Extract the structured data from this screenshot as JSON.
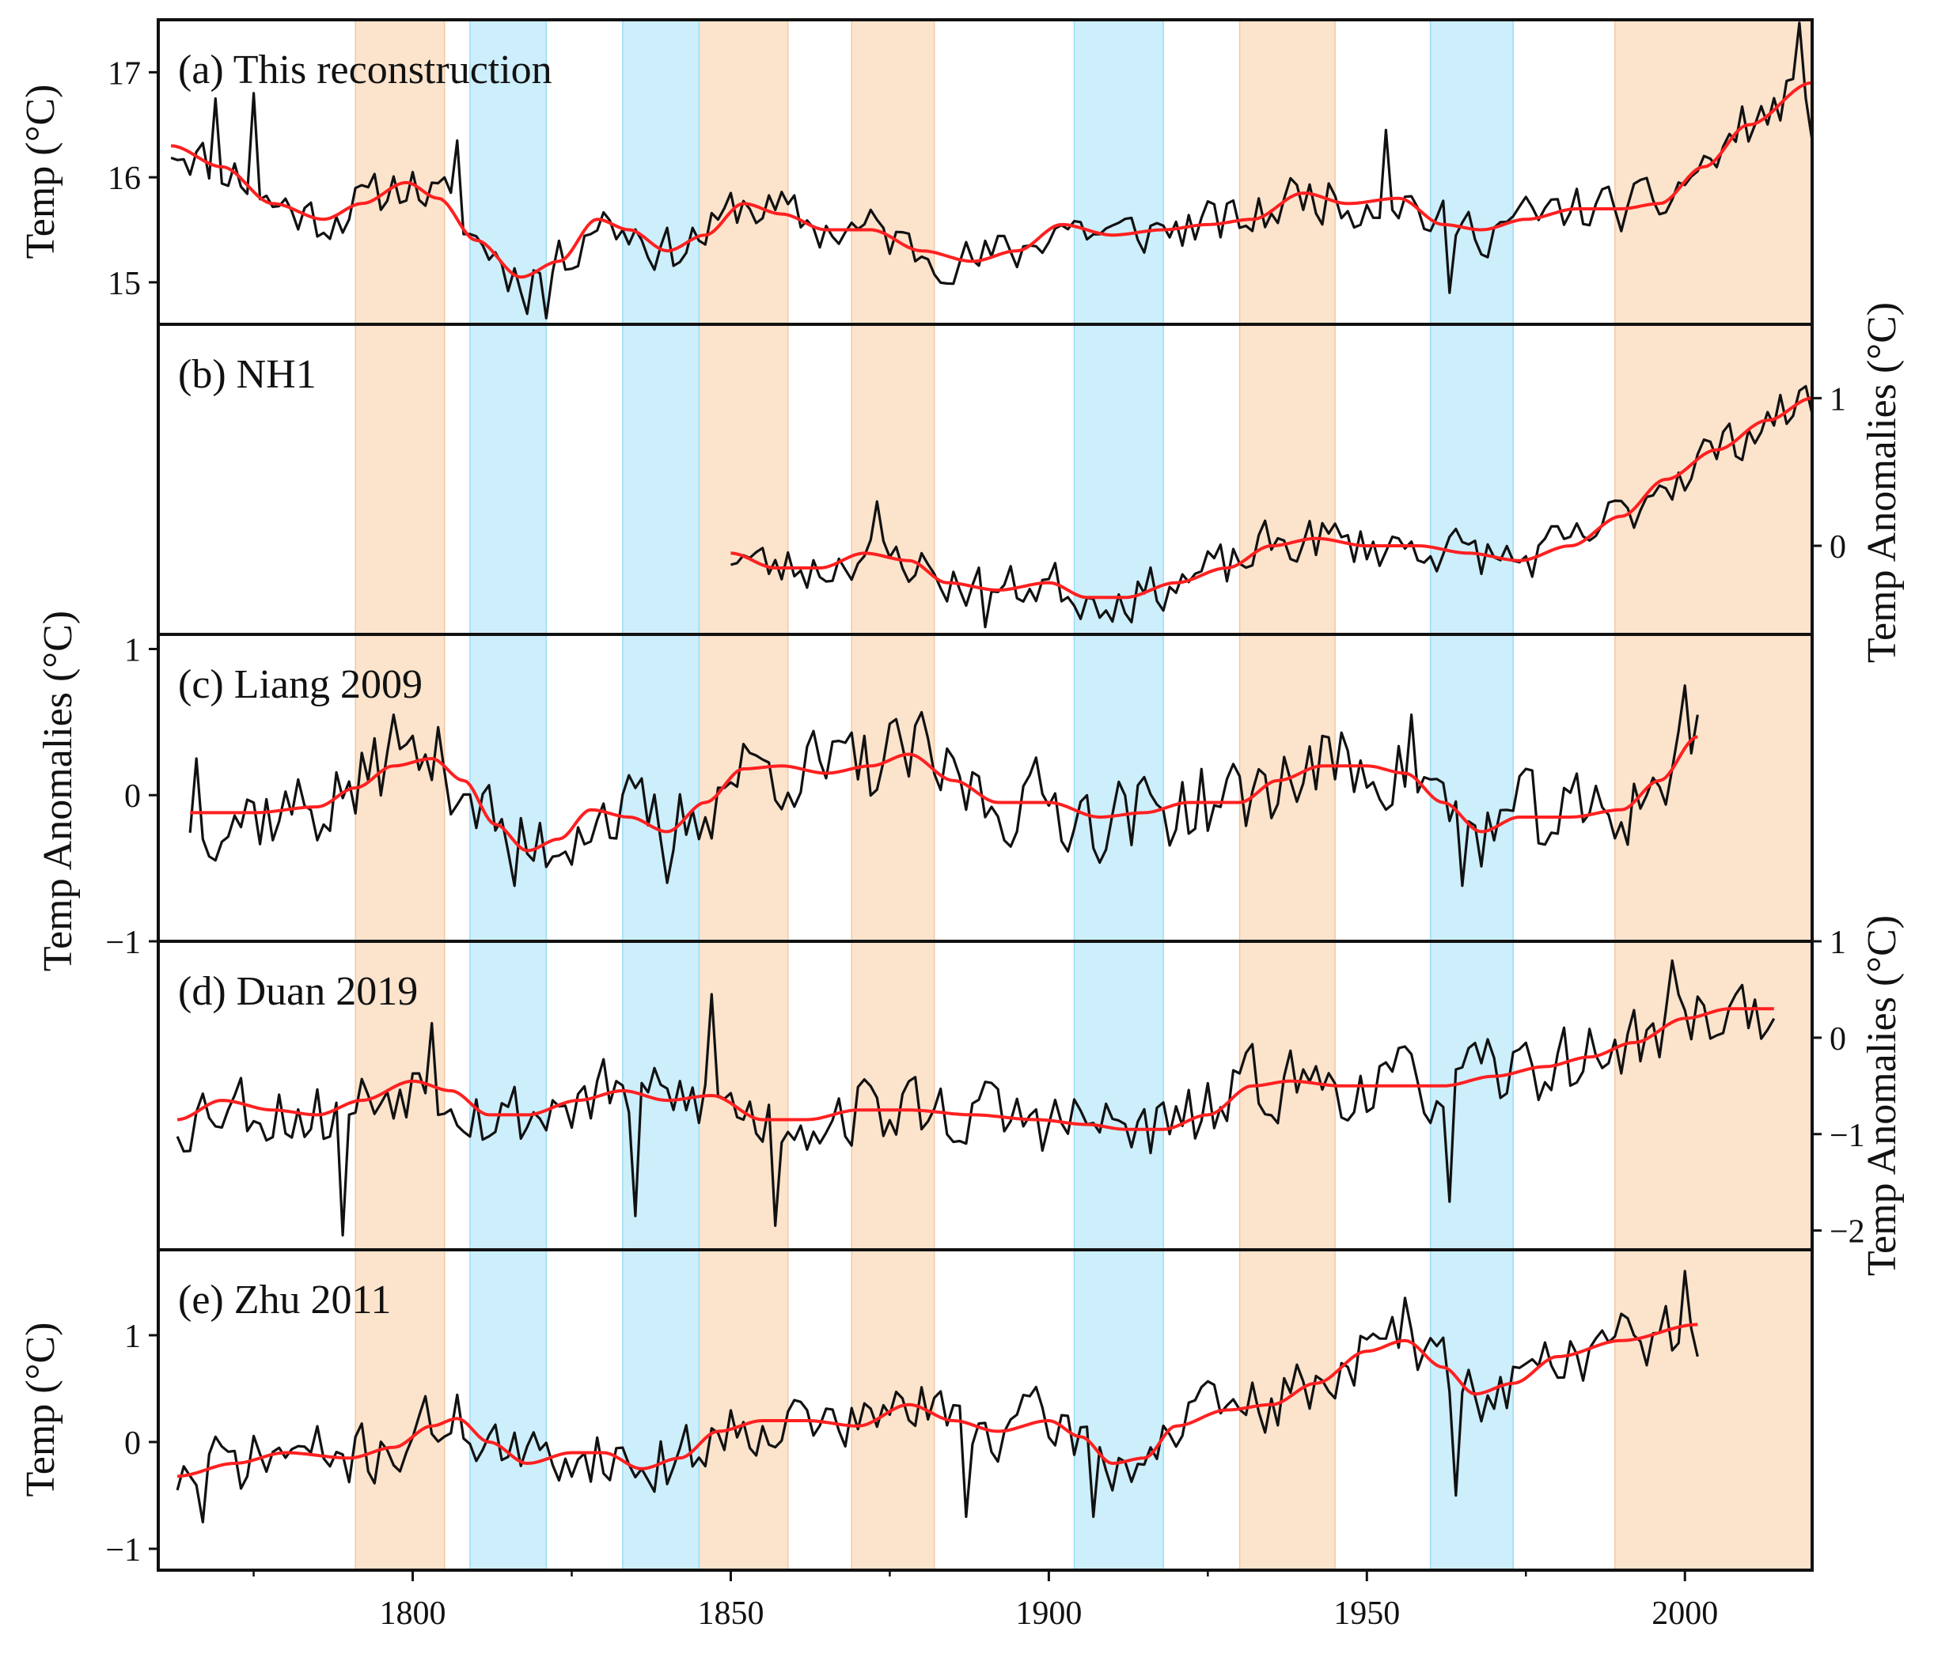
{
  "chart_data": {
    "type": "line",
    "x_axis": {
      "xlim": [
        1760,
        2020
      ],
      "ticks": [
        1800,
        1850,
        1900,
        1950,
        2000
      ],
      "tick_labels": [
        "1800",
        "1850",
        "1900",
        "1950",
        "2000"
      ]
    },
    "shaded_intervals": {
      "warm_color": "#fbe3cc",
      "cold_color": "#cdeefb",
      "warm": [
        [
          1791,
          1805
        ],
        [
          1845,
          1859
        ],
        [
          1869,
          1882
        ],
        [
          1930,
          1945
        ],
        [
          1989,
          2020
        ]
      ],
      "cold": [
        [
          1809,
          1821
        ],
        [
          1833,
          1845
        ],
        [
          1904,
          1918
        ],
        [
          1960,
          1973
        ]
      ]
    },
    "series_colors": {
      "raw": "#111111",
      "smooth": "#ff2020"
    },
    "panels": [
      {
        "id": "a",
        "title": "(a) This reconstruction",
        "y_side": "left",
        "ylabel": "Temp (°C)",
        "ylim": [
          14.6,
          17.5
        ],
        "yticks": [
          15,
          16,
          17
        ],
        "ytick_labels": [
          "15",
          "16",
          "17"
        ],
        "x_range": [
          1762,
          2020
        ],
        "smooth": [
          [
            1762,
            16.3
          ],
          [
            1770,
            16.1
          ],
          [
            1778,
            15.75
          ],
          [
            1786,
            15.6
          ],
          [
            1792,
            15.75
          ],
          [
            1799,
            15.95
          ],
          [
            1804,
            15.8
          ],
          [
            1810,
            15.4
          ],
          [
            1817,
            15.05
          ],
          [
            1823,
            15.2
          ],
          [
            1829,
            15.6
          ],
          [
            1834,
            15.5
          ],
          [
            1840,
            15.3
          ],
          [
            1846,
            15.45
          ],
          [
            1852,
            15.75
          ],
          [
            1858,
            15.65
          ],
          [
            1865,
            15.5
          ],
          [
            1872,
            15.5
          ],
          [
            1880,
            15.3
          ],
          [
            1888,
            15.2
          ],
          [
            1895,
            15.3
          ],
          [
            1902,
            15.55
          ],
          [
            1910,
            15.45
          ],
          [
            1918,
            15.5
          ],
          [
            1925,
            15.55
          ],
          [
            1932,
            15.6
          ],
          [
            1940,
            15.85
          ],
          [
            1947,
            15.75
          ],
          [
            1955,
            15.8
          ],
          [
            1962,
            15.55
          ],
          [
            1968,
            15.5
          ],
          [
            1975,
            15.6
          ],
          [
            1983,
            15.7
          ],
          [
            1990,
            15.7
          ],
          [
            1996,
            15.75
          ],
          [
            2003,
            16.1
          ],
          [
            2010,
            16.5
          ],
          [
            2020,
            16.9
          ]
        ],
        "raw": {
          "seed": 11,
          "amp": 0.4,
          "overrides": [
            [
              1769,
              16.75
            ],
            [
              1775,
              16.8
            ],
            [
              1807,
              16.35
            ],
            [
              1818,
              14.7
            ],
            [
              1821,
              14.65
            ],
            [
              1953,
              16.45
            ],
            [
              1963,
              14.9
            ],
            [
              2018,
              17.5
            ],
            [
              2020,
              16.35
            ]
          ]
        }
      },
      {
        "id": "b",
        "title": "(b) NH1",
        "y_side": "right",
        "ylim": [
          -0.6,
          1.5
        ],
        "yticks": [
          0,
          1
        ],
        "ytick_labels": [
          "0",
          "1"
        ],
        "x_range": [
          1850,
          2020
        ],
        "smooth": [
          [
            1850,
            -0.05
          ],
          [
            1857,
            -0.15
          ],
          [
            1864,
            -0.15
          ],
          [
            1871,
            -0.05
          ],
          [
            1878,
            -0.1
          ],
          [
            1884,
            -0.25
          ],
          [
            1892,
            -0.3
          ],
          [
            1900,
            -0.25
          ],
          [
            1906,
            -0.35
          ],
          [
            1912,
            -0.35
          ],
          [
            1920,
            -0.25
          ],
          [
            1928,
            -0.15
          ],
          [
            1935,
            0.0
          ],
          [
            1942,
            0.05
          ],
          [
            1950,
            0.0
          ],
          [
            1958,
            0.0
          ],
          [
            1966,
            -0.05
          ],
          [
            1974,
            -0.1
          ],
          [
            1982,
            0.0
          ],
          [
            1990,
            0.2
          ],
          [
            1997,
            0.45
          ],
          [
            2005,
            0.65
          ],
          [
            2013,
            0.85
          ],
          [
            2020,
            1.0
          ]
        ],
        "raw": {
          "seed": 23,
          "amp": 0.28,
          "overrides": [
            [
              1873,
              0.3
            ],
            [
              1890,
              -0.55
            ],
            [
              1955,
              0.05
            ],
            [
              2018,
              1.05
            ]
          ]
        }
      },
      {
        "id": "c",
        "title": "(c) Liang 2009",
        "y_side": "left",
        "ylabel": "Temp Anomalies (°C)",
        "ylim": [
          -1.0,
          1.1
        ],
        "yticks": [
          -1,
          0,
          1
        ],
        "ytick_labels": [
          "−1",
          "0",
          "1"
        ],
        "x_range": [
          1765,
          2002
        ],
        "smooth": [
          [
            1765,
            -0.12
          ],
          [
            1775,
            -0.12
          ],
          [
            1785,
            -0.08
          ],
          [
            1791,
            0.05
          ],
          [
            1797,
            0.2
          ],
          [
            1803,
            0.25
          ],
          [
            1808,
            0.1
          ],
          [
            1813,
            -0.2
          ],
          [
            1818,
            -0.38
          ],
          [
            1823,
            -0.3
          ],
          [
            1828,
            -0.1
          ],
          [
            1834,
            -0.15
          ],
          [
            1840,
            -0.25
          ],
          [
            1846,
            -0.05
          ],
          [
            1852,
            0.18
          ],
          [
            1858,
            0.2
          ],
          [
            1865,
            0.15
          ],
          [
            1872,
            0.2
          ],
          [
            1878,
            0.28
          ],
          [
            1885,
            0.1
          ],
          [
            1892,
            -0.05
          ],
          [
            1900,
            -0.05
          ],
          [
            1908,
            -0.15
          ],
          [
            1915,
            -0.12
          ],
          [
            1922,
            -0.05
          ],
          [
            1930,
            -0.05
          ],
          [
            1936,
            0.1
          ],
          [
            1943,
            0.2
          ],
          [
            1950,
            0.2
          ],
          [
            1956,
            0.15
          ],
          [
            1962,
            -0.05
          ],
          [
            1968,
            -0.25
          ],
          [
            1974,
            -0.15
          ],
          [
            1982,
            -0.15
          ],
          [
            1990,
            -0.1
          ],
          [
            1996,
            0.1
          ],
          [
            2002,
            0.4
          ]
        ],
        "raw": {
          "seed": 37,
          "amp": 0.5,
          "overrides": [
            [
              1766,
              0.25
            ],
            [
              1797,
              0.55
            ],
            [
              1816,
              -0.62
            ],
            [
              1840,
              -0.6
            ],
            [
              1957,
              0.55
            ],
            [
              1965,
              -0.62
            ],
            [
              2000,
              0.75
            ],
            [
              2002,
              0.55
            ]
          ]
        }
      },
      {
        "id": "d",
        "title": "(d) Duan 2019",
        "y_side": "right",
        "ylabel": "Temp Anomalies (°C)",
        "ylim": [
          -2.2,
          1.0
        ],
        "yticks": [
          -2,
          -1,
          0,
          1
        ],
        "ytick_labels": [
          "−2",
          "−1",
          "0",
          "1"
        ],
        "x_range": [
          1763,
          2014
        ],
        "smooth": [
          [
            1763,
            -0.85
          ],
          [
            1770,
            -0.65
          ],
          [
            1778,
            -0.75
          ],
          [
            1785,
            -0.8
          ],
          [
            1792,
            -0.65
          ],
          [
            1800,
            -0.45
          ],
          [
            1806,
            -0.55
          ],
          [
            1812,
            -0.8
          ],
          [
            1818,
            -0.8
          ],
          [
            1826,
            -0.65
          ],
          [
            1833,
            -0.55
          ],
          [
            1840,
            -0.65
          ],
          [
            1847,
            -0.6
          ],
          [
            1855,
            -0.85
          ],
          [
            1862,
            -0.85
          ],
          [
            1870,
            -0.75
          ],
          [
            1878,
            -0.75
          ],
          [
            1888,
            -0.8
          ],
          [
            1898,
            -0.85
          ],
          [
            1906,
            -0.9
          ],
          [
            1912,
            -0.95
          ],
          [
            1918,
            -0.95
          ],
          [
            1925,
            -0.8
          ],
          [
            1932,
            -0.5
          ],
          [
            1938,
            -0.45
          ],
          [
            1946,
            -0.5
          ],
          [
            1955,
            -0.5
          ],
          [
            1962,
            -0.5
          ],
          [
            1970,
            -0.4
          ],
          [
            1978,
            -0.3
          ],
          [
            1985,
            -0.2
          ],
          [
            1992,
            -0.05
          ],
          [
            2000,
            0.2
          ],
          [
            2007,
            0.3
          ],
          [
            2014,
            0.3
          ]
        ],
        "raw": {
          "seed": 53,
          "amp": 0.65,
          "overrides": [
            [
              1789,
              -2.05
            ],
            [
              1803,
              0.15
            ],
            [
              1847,
              0.45
            ],
            [
              1848,
              -0.6
            ],
            [
              1857,
              -1.95
            ],
            [
              1835,
              -1.85
            ],
            [
              1963,
              -1.7
            ],
            [
              1998,
              0.8
            ]
          ]
        }
      },
      {
        "id": "e",
        "title": "(e) Zhu 2011",
        "y_side": "left",
        "ylabel": "Temp (°C)",
        "ylim": [
          -1.2,
          1.8
        ],
        "yticks": [
          -1,
          0,
          1
        ],
        "ytick_labels": [
          "−1",
          "0",
          "1"
        ],
        "x_range": [
          1763,
          2002
        ],
        "smooth": [
          [
            1763,
            -0.32
          ],
          [
            1772,
            -0.2
          ],
          [
            1780,
            -0.1
          ],
          [
            1790,
            -0.15
          ],
          [
            1797,
            -0.05
          ],
          [
            1803,
            0.15
          ],
          [
            1807,
            0.22
          ],
          [
            1812,
            0.0
          ],
          [
            1818,
            -0.2
          ],
          [
            1825,
            -0.1
          ],
          [
            1830,
            -0.1
          ],
          [
            1836,
            -0.25
          ],
          [
            1842,
            -0.15
          ],
          [
            1848,
            0.1
          ],
          [
            1855,
            0.2
          ],
          [
            1862,
            0.2
          ],
          [
            1870,
            0.15
          ],
          [
            1878,
            0.35
          ],
          [
            1885,
            0.2
          ],
          [
            1892,
            0.1
          ],
          [
            1900,
            0.2
          ],
          [
            1905,
            0.05
          ],
          [
            1910,
            -0.2
          ],
          [
            1915,
            -0.15
          ],
          [
            1920,
            0.15
          ],
          [
            1928,
            0.3
          ],
          [
            1935,
            0.35
          ],
          [
            1942,
            0.55
          ],
          [
            1950,
            0.85
          ],
          [
            1956,
            0.95
          ],
          [
            1962,
            0.7
          ],
          [
            1967,
            0.45
          ],
          [
            1973,
            0.55
          ],
          [
            1980,
            0.8
          ],
          [
            1990,
            0.95
          ],
          [
            2002,
            1.1
          ]
        ],
        "raw": {
          "seed": 71,
          "amp": 0.5,
          "overrides": [
            [
              1767,
              -0.75
            ],
            [
              1887,
              -0.7
            ],
            [
              1907,
              -0.7
            ],
            [
              1956,
              1.35
            ],
            [
              1964,
              -0.5
            ],
            [
              2000,
              1.6
            ],
            [
              2002,
              0.8
            ]
          ]
        }
      }
    ]
  }
}
